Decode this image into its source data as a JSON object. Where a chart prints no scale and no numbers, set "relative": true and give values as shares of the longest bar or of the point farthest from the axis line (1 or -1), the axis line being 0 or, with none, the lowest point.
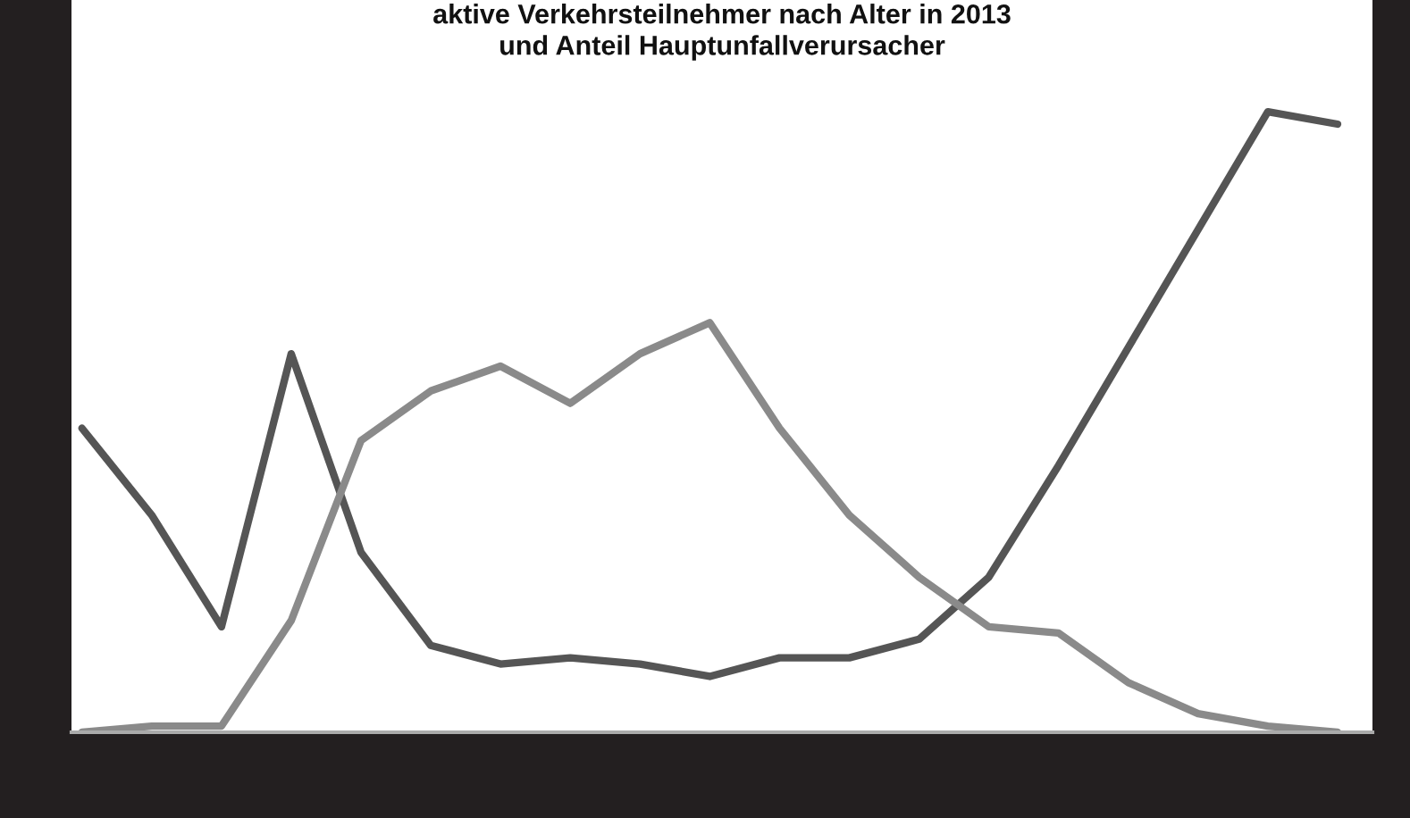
{
  "chart_data": {
    "type": "line",
    "title": "aktive Verkehrsteilnehmer nach Alter in 2013\nund Anteil Hauptunfallverursacher",
    "relative": true,
    "categories": [
      null,
      null,
      null,
      null,
      null,
      null,
      null,
      null,
      null,
      null,
      null,
      null,
      null,
      null,
      null,
      null,
      null,
      null,
      null
    ],
    "series": [
      {
        "color": "#555555",
        "values": [
          0.49,
          0.35,
          0.17,
          0.61,
          0.29,
          0.14,
          0.11,
          0.12,
          0.11,
          0.09,
          0.12,
          0.12,
          0.15,
          0.25,
          0.43,
          0.62,
          0.81,
          1.0,
          0.98
        ]
      },
      {
        "color": "#8a8a8a",
        "values": [
          0.0,
          0.01,
          0.01,
          0.18,
          0.47,
          0.55,
          0.59,
          0.53,
          0.61,
          0.66,
          0.49,
          0.35,
          0.25,
          0.17,
          0.16,
          0.08,
          0.03,
          0.01,
          0.0
        ]
      }
    ],
    "grid": false,
    "legend": false
  }
}
